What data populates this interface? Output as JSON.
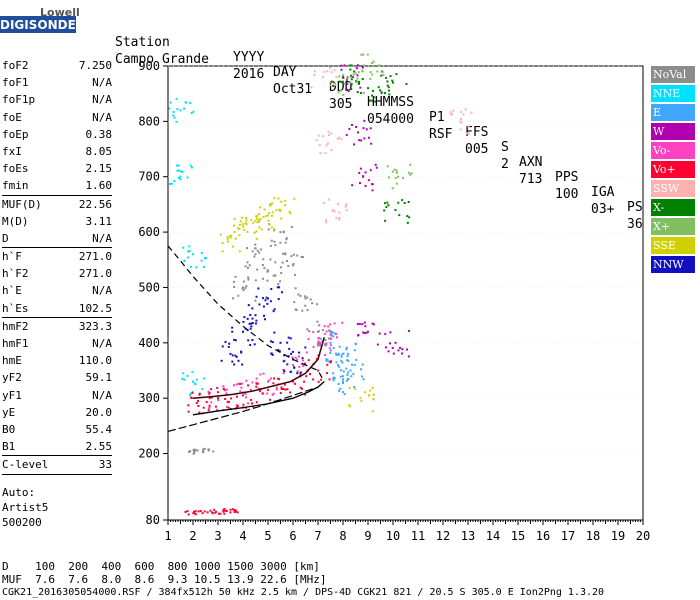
{
  "logo": {
    "top": "Lowell",
    "main": "DIGISONDE"
  },
  "header": {
    "labels": [
      "Station",
      "YYYY",
      "DAY",
      "DDD",
      "HHMMSS",
      "P1",
      "FFS",
      "S",
      "AXN",
      "PPS",
      "IGA",
      "PS"
    ],
    "values": [
      "Campo Grande",
      "2016",
      "Oct31",
      "305",
      "054000",
      "RSF",
      "005",
      "2",
      "713",
      "100",
      "03+",
      "36"
    ]
  },
  "params": [
    {
      "name": "foF2",
      "value": "7.250",
      "sep": false
    },
    {
      "name": "foF1",
      "value": "N/A",
      "sep": false
    },
    {
      "name": "foF1p",
      "value": "N/A",
      "sep": false
    },
    {
      "name": "foE",
      "value": "N/A",
      "sep": false
    },
    {
      "name": "foEp",
      "value": "0.38",
      "sep": false
    },
    {
      "name": "fxI",
      "value": "8.05",
      "sep": false
    },
    {
      "name": "foEs",
      "value": "2.15",
      "sep": false
    },
    {
      "name": "fmin",
      "value": "1.60",
      "sep": true
    },
    {
      "name": "MUF(D)",
      "value": "22.56",
      "sep": false
    },
    {
      "name": "M(D)",
      "value": "3.11",
      "sep": false
    },
    {
      "name": "D",
      "value": "N/A",
      "sep": true
    },
    {
      "name": "h`F",
      "value": "271.0",
      "sep": false
    },
    {
      "name": "h`F2",
      "value": "271.0",
      "sep": false
    },
    {
      "name": "h`E",
      "value": "N/A",
      "sep": false
    },
    {
      "name": "h`Es",
      "value": "102.5",
      "sep": true
    },
    {
      "name": "hmF2",
      "value": "323.3",
      "sep": false
    },
    {
      "name": "hmF1",
      "value": "N/A",
      "sep": false
    },
    {
      "name": "hmE",
      "value": "110.0",
      "sep": false
    },
    {
      "name": "yF2",
      "value": "59.1",
      "sep": false
    },
    {
      "name": "yF1",
      "value": "N/A",
      "sep": false
    },
    {
      "name": "yE",
      "value": "20.0",
      "sep": false
    },
    {
      "name": "B0",
      "value": "55.4",
      "sep": false
    },
    {
      "name": "B1",
      "value": "2.55",
      "sep": true
    },
    {
      "name": "C-level",
      "value": "33",
      "sep": true
    }
  ],
  "autoscale": {
    "line1": "Auto:",
    "line2": "Artist5",
    "line3": "500200"
  },
  "legend": [
    {
      "label": "NoVal",
      "color": "#8c8c8c"
    },
    {
      "label": "NNE",
      "color": "#00e0ff"
    },
    {
      "label": "E",
      "color": "#3fa7ff"
    },
    {
      "label": "W",
      "color": "#b000b0"
    },
    {
      "label": "Vo-",
      "color": "#ff40c0"
    },
    {
      "label": "Vo+",
      "color": "#ff0030"
    },
    {
      "label": "SSW",
      "color": "#ffb0b0"
    },
    {
      "label": "X-",
      "color": "#008000"
    },
    {
      "label": "X+",
      "color": "#80c060"
    },
    {
      "label": "SSE",
      "color": "#d0d000"
    },
    {
      "label": "NNW",
      "color": "#1010c0"
    }
  ],
  "bottom": {
    "row1": "D    100  200  400  600  800 1000 1500 3000 [km]",
    "row2": "MUF  7.6  7.6  8.0  8.6  9.3 10.5 13.9 22.6 [MHz]",
    "row3": "CGK21_2016305054000.RSF / 384fx512h 50 kHz 2.5 km / DPS-4D CGK21 821 / 20.5 S 305.0 E Ion2Png 1.3.20"
  },
  "chart_data": {
    "type": "scatter",
    "title": "",
    "xlabel": "",
    "ylabel": "",
    "xlim": [
      1,
      20
    ],
    "ylim": [
      80,
      900
    ],
    "x_ticks": [
      1,
      2,
      3,
      4,
      5,
      6,
      7,
      8,
      9,
      10,
      11,
      12,
      13,
      14,
      15,
      16,
      17,
      18,
      19,
      20
    ],
    "y_ticks": [
      80,
      200,
      300,
      400,
      500,
      600,
      700,
      800,
      900
    ],
    "curves": {
      "profile_solid": {
        "x": [
          2.0,
          3.0,
          4.0,
          5.0,
          6.0,
          6.6,
          7.0,
          7.25
        ],
        "y": [
          270,
          277,
          283,
          290,
          300,
          311,
          320,
          330
        ]
      },
      "trace_ordinary": {
        "x": [
          2.0,
          2.8,
          3.6,
          4.4,
          5.2,
          5.9,
          6.5,
          7.0,
          7.25
        ],
        "y": [
          300,
          303,
          307,
          313,
          322,
          330,
          345,
          370,
          410
        ]
      },
      "profile_dashed": {
        "x": [
          1.0,
          1.5,
          2.0,
          3.0,
          4.0,
          5.0,
          6.0,
          7.0,
          7.25
        ],
        "y": [
          575,
          548,
          520,
          470,
          430,
          395,
          370,
          350,
          330
        ]
      },
      "lower_dashed": {
        "x": [
          1.0,
          2.0,
          3.0,
          4.0,
          5.0,
          6.0,
          7.0,
          7.25
        ],
        "y": [
          240,
          252,
          264,
          276,
          290,
          305,
          320,
          330
        ]
      }
    },
    "echo_clusters": [
      {
        "name": "NoVal",
        "color": "#8c8c8c",
        "x": [
          4.0,
          4.5,
          5.0,
          5.5,
          6.0,
          6.5,
          7.0
        ],
        "y": [
          500,
          560,
          530,
          600,
          540,
          480,
          420
        ]
      },
      {
        "name": "NNE",
        "color": "#00e0ff",
        "x": [
          1.5,
          1.5,
          2.0,
          2.0
        ],
        "y": [
          820,
          700,
          560,
          330
        ]
      },
      {
        "name": "E",
        "color": "#3fa7ff",
        "x": [
          7.5,
          7.8,
          8.0,
          8.2,
          8.3
        ],
        "y": [
          400,
          360,
          330,
          380,
          350
        ]
      },
      {
        "name": "W",
        "color": "#b000b0",
        "x": [
          8.4,
          8.6,
          8.8,
          9.0,
          10.1
        ],
        "y": [
          880,
          780,
          700,
          420,
          400
        ]
      },
      {
        "name": "Vo-",
        "color": "#ff40c0",
        "x": [
          3.0,
          4.0,
          5.0,
          6.0,
          7.0,
          7.5
        ],
        "y": [
          300,
          310,
          330,
          360,
          400,
          420
        ]
      },
      {
        "name": "Vo+",
        "color": "#ff0030",
        "x": [
          2.2,
          3.0,
          4.0,
          5.0,
          6.0,
          7.0
        ],
        "y": [
          295,
          300,
          305,
          315,
          330,
          350
        ]
      },
      {
        "name": "SSW",
        "color": "#ffb0b0",
        "x": [
          7.2,
          7.4,
          7.6,
          12.7
        ],
        "y": [
          880,
          760,
          640,
          800
        ]
      },
      {
        "name": "X-",
        "color": "#008000",
        "x": [
          8.0,
          9.0,
          10.0,
          10.1
        ],
        "y": [
          880,
          860,
          870,
          640
        ]
      },
      {
        "name": "X+",
        "color": "#80c060",
        "x": [
          8.3,
          9.2,
          10.2
        ],
        "y": [
          870,
          900,
          700
        ]
      },
      {
        "name": "SSE",
        "color": "#d0d000",
        "x": [
          3.5,
          4.0,
          4.5,
          5.0,
          5.5,
          8.7
        ],
        "y": [
          590,
          610,
          620,
          630,
          640,
          300
        ]
      },
      {
        "name": "NNW",
        "color": "#1010c0",
        "x": [
          3.5,
          4.0,
          4.5,
          5.0,
          5.5,
          6.0
        ],
        "y": [
          380,
          420,
          450,
          480,
          400,
          370
        ]
      }
    ],
    "es_echoes": [
      {
        "color": "#ff0030",
        "x": [
          1.9,
          2.2,
          2.6,
          3.0,
          3.4,
          3.6
        ],
        "y": [
          95,
          95,
          97,
          96,
          98,
          97
        ]
      },
      {
        "color": "#8c8c8c",
        "x": [
          1.9,
          2.2,
          2.6
        ],
        "y": [
          205,
          206,
          207
        ]
      }
    ]
  }
}
